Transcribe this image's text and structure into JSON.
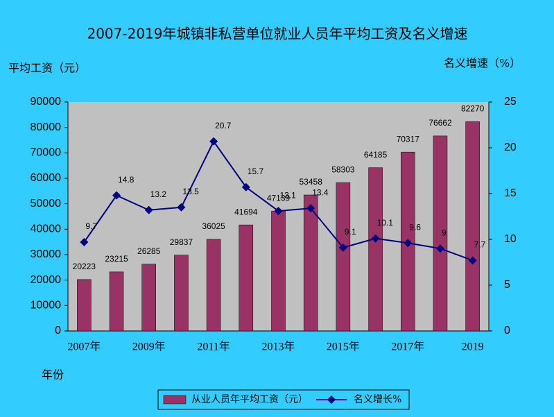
{
  "chart_data": {
    "type": "bar",
    "title": "2007-2019年城镇非私营单位就业人员年平均工资及名义增速",
    "y_label": "平均工资（元）",
    "y2_label": "名义增速（%）",
    "x_label": "年份",
    "categories": [
      "2007年",
      null,
      "2009年",
      null,
      "2011年",
      null,
      "2013年",
      null,
      "2015年",
      null,
      "2017年",
      null,
      "2019"
    ],
    "series": [
      {
        "name": "从业人员年平均工资（元）",
        "type": "bar",
        "color": "#993366",
        "values": [
          20223,
          23215,
          26285,
          29837,
          36025,
          41694,
          47139,
          53458,
          58303,
          64185,
          70317,
          76662,
          82270
        ]
      },
      {
        "name": "名义增长%",
        "type": "line",
        "axis": "y2",
        "color": "#000080",
        "values": [
          9.7,
          14.8,
          13.2,
          13.5,
          20.7,
          15.7,
          13.1,
          13.4,
          9.1,
          10.1,
          9.6,
          9,
          7.7
        ]
      }
    ],
    "ylim": [
      0,
      90000
    ],
    "yticks": [
      0,
      10000,
      20000,
      30000,
      40000,
      50000,
      60000,
      70000,
      80000,
      90000
    ],
    "y2lim": [
      0,
      25
    ],
    "y2ticks": [
      0,
      5,
      10,
      15,
      20,
      25
    ]
  }
}
